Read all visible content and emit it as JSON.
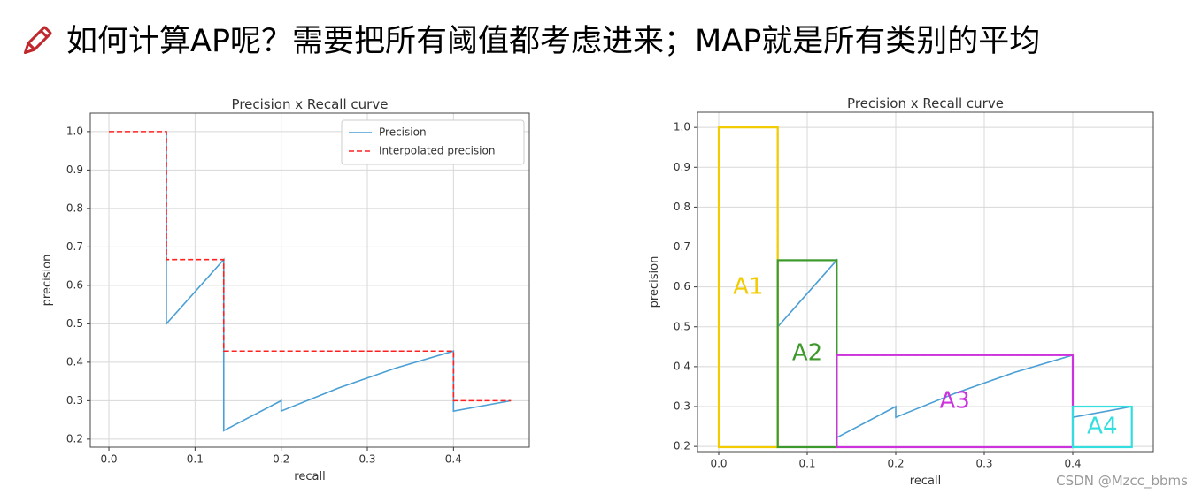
{
  "heading": "如何计算AP呢？需要把所有阈值都考虑进来；MAP就是所有类别的平均",
  "watermark": "CSDN @Mzcc_bbms",
  "chart_data": [
    {
      "type": "line",
      "title": "Precision x Recall curve",
      "xlabel": "recall",
      "ylabel": "precision",
      "xlim": [
        -0.0216,
        0.488
      ],
      "ylim": [
        0.179,
        1.048
      ],
      "xticks": [
        {
          "value": 0.0,
          "label": "0.0"
        },
        0.1,
        0.2,
        0.3,
        0.4
      ],
      "yticks": [
        0.2,
        0.3,
        0.4,
        0.5,
        0.6,
        0.7,
        0.8,
        0.9,
        {
          "value": 1.0,
          "label": "1.0"
        }
      ],
      "grid": true,
      "legend": "upper right",
      "series": [
        {
          "name": "Precision",
          "color": "#4a9fd5",
          "linestyle": "solid",
          "x": [
            0.0667,
            0.0667,
            0.1333,
            0.1333,
            0.2,
            0.2,
            0.2667,
            0.3333,
            0.4,
            0.4,
            0.4667
          ],
          "values": [
            1.0,
            0.5,
            0.667,
            0.222,
            0.3,
            0.273,
            0.333,
            0.385,
            0.429,
            0.273,
            0.3
          ]
        },
        {
          "name": "Interpolated precision",
          "color": "#ff2020",
          "linestyle": "dashed",
          "x": [
            0,
            0.0667,
            0.0667,
            0.1333,
            0.1333,
            0.4,
            0.4,
            0.4667
          ],
          "values": [
            1.0,
            1.0,
            0.667,
            0.667,
            0.429,
            0.429,
            0.3,
            0.3
          ]
        }
      ]
    },
    {
      "type": "line",
      "title": "Precision x Recall curve",
      "xlabel": "recall",
      "ylabel": "precision",
      "xlim": [
        -0.024,
        0.491
      ],
      "ylim": [
        0.187,
        1.038
      ],
      "xticks": [
        {
          "value": 0.0,
          "label": "0.0"
        },
        0.1,
        0.2,
        0.3,
        0.4
      ],
      "yticks": [
        0.2,
        0.3,
        0.4,
        0.5,
        0.6,
        0.7,
        0.8,
        0.9,
        {
          "value": 1.0,
          "label": "1.0"
        }
      ],
      "grid": true,
      "series": [
        {
          "name": "Precision",
          "color": "#4a9fd5",
          "linestyle": "solid",
          "x": [
            0.0667,
            0.0667,
            0.1333,
            0.1333,
            0.2,
            0.2,
            0.2667,
            0.3333,
            0.4,
            0.4,
            0.4667
          ],
          "values": [
            1.0,
            0.5,
            0.667,
            0.222,
            0.3,
            0.273,
            0.333,
            0.385,
            0.429,
            0.273,
            0.3
          ]
        },
        {
          "name": "Interpolated precision",
          "color": "#ff2020",
          "linestyle": "dashed",
          "x": [
            0,
            0.0667,
            0.0667,
            0.1333,
            0.1333,
            0.4,
            0.4,
            0.4667
          ],
          "values": [
            1.0,
            1.0,
            0.667,
            0.667,
            0.429,
            0.429,
            0.3,
            0.3
          ]
        }
      ],
      "regions": [
        {
          "label": "A1",
          "color": "#f2cc00",
          "x": [
            0,
            0.0667
          ],
          "height": 1.0
        },
        {
          "label": "A2",
          "color": "#3c9a2a",
          "x": [
            0.0667,
            0.1333
          ],
          "height": 0.667
        },
        {
          "label": "A3",
          "color": "#cc33dd",
          "x": [
            0.1333,
            0.4
          ],
          "height": 0.429
        },
        {
          "label": "A4",
          "color": "#33dede",
          "x": [
            0.4,
            0.4667
          ],
          "height": 0.3
        }
      ]
    }
  ]
}
